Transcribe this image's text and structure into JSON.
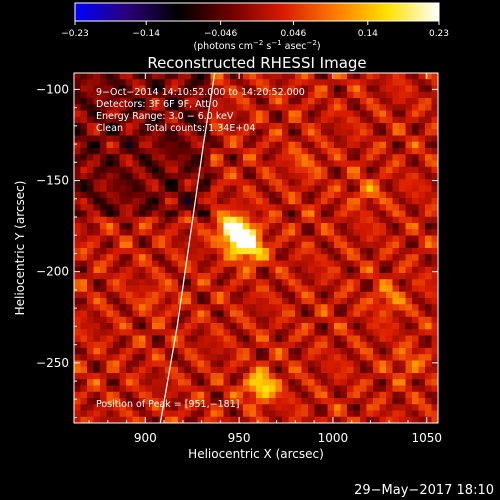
{
  "chart_data": {
    "type": "heatmap",
    "title": "Reconstructed RHESSI Image",
    "xlabel": "Heliocentric X (arcsec)",
    "ylabel": "Heliocentric Y (arcsec)",
    "xlim": [
      862,
      1056
    ],
    "ylim": [
      -283,
      -91
    ],
    "x_ticks": [
      900,
      950,
      1000,
      1050
    ],
    "y_ticks": [
      -100,
      -150,
      -200,
      -250
    ],
    "x_tick_labels": [
      "900",
      "950",
      "1000",
      "1050"
    ],
    "y_tick_labels": [
      "−100",
      "−150",
      "−200",
      "−250"
    ],
    "colorbar": {
      "min": -0.23,
      "max": 0.23,
      "ticks": [
        -0.23,
        -0.14,
        -0.046,
        0.046,
        0.14,
        0.23
      ],
      "tick_labels": [
        "−0.23",
        "−0.14",
        "−0.046",
        "0.046",
        "0.14",
        "0.23"
      ],
      "unit_main": "(photons cm",
      "unit_exp1": "−2",
      "unit_mid": " s",
      "unit_exp2": "−1",
      "unit_mid2": " asec",
      "unit_exp3": "−2",
      "unit_end": ")",
      "colors": [
        "#0000ff",
        "#2a0078",
        "#000000",
        "#6e0000",
        "#d81b00",
        "#ff7a00",
        "#ffe000",
        "#ffffff"
      ]
    },
    "sources": [
      {
        "x": 951,
        "y": -181,
        "flux": 0.23
      },
      {
        "x": 946,
        "y": -176,
        "flux": 0.15
      },
      {
        "x": 956,
        "y": -188,
        "flux": 0.14
      },
      {
        "x": 962,
        "y": -263,
        "flux": 0.17
      },
      {
        "x": 1030,
        "y": -215,
        "flux": 0.08
      },
      {
        "x": 1018,
        "y": -157,
        "flux": 0.06
      },
      {
        "x": 985,
        "y": -140,
        "flux": 0.05
      },
      {
        "x": 1040,
        "y": -250,
        "flux": 0.06
      },
      {
        "x": 905,
        "y": -215,
        "flux": 0.04
      }
    ],
    "limb_curve": [
      [
        937,
        -91
      ],
      [
        931,
        -130
      ],
      [
        924,
        -180
      ],
      [
        917,
        -230
      ],
      [
        908,
        -283
      ]
    ],
    "peak_label_prefix": "Position of Peak = ",
    "peak_value": "[951,−181]",
    "annotations": [
      "9−Oct−2014 14:10:52.000 to 14:20:52.000",
      "Detectors: 3F 6F 9F, Att 0",
      "Energy Range: 3.0 − 6.0 keV",
      "Clean",
      "Total counts: 1.34E+04"
    ],
    "footer_date": "29−May−2017 18:10"
  }
}
